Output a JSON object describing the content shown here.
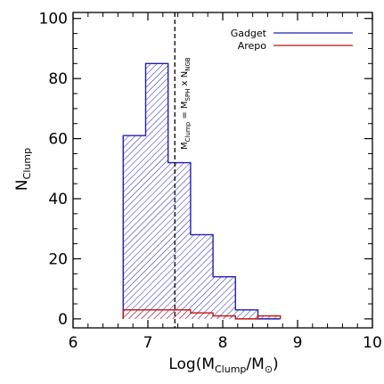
{
  "chart_data": {
    "type": "bar",
    "title": "",
    "xlabel": {
      "main": "Log(M",
      "sub": "Clump",
      "mid": "/M",
      "sub2": "⊙",
      "end": ")"
    },
    "ylabel": {
      "main": "N",
      "sub": "Clump"
    },
    "xlim": [
      6,
      10
    ],
    "ylim": [
      -3,
      102
    ],
    "xticks": [
      "6",
      "7",
      "8",
      "9",
      "10"
    ],
    "yticks": [
      "0",
      "20",
      "40",
      "60",
      "80",
      "100"
    ],
    "bin_edges": [
      6.67,
      6.97,
      7.27,
      7.57,
      7.87,
      8.17,
      8.47,
      8.77
    ],
    "series": [
      {
        "name": "Gadget",
        "color": "#1f1fb4",
        "values": [
          61,
          85,
          52,
          28,
          14,
          3,
          0
        ]
      },
      {
        "name": "Arepo",
        "color": "#c01010",
        "values": [
          3,
          3,
          3,
          2,
          1,
          0,
          1
        ]
      }
    ],
    "annotation": {
      "text": "M",
      "sub1": "Clump",
      "mid": " = M",
      "sub2": "SPH",
      "mid2": " x N",
      "sub3": "NGB",
      "x": 7.36
    },
    "legend_position": "top-right",
    "grid": false
  }
}
